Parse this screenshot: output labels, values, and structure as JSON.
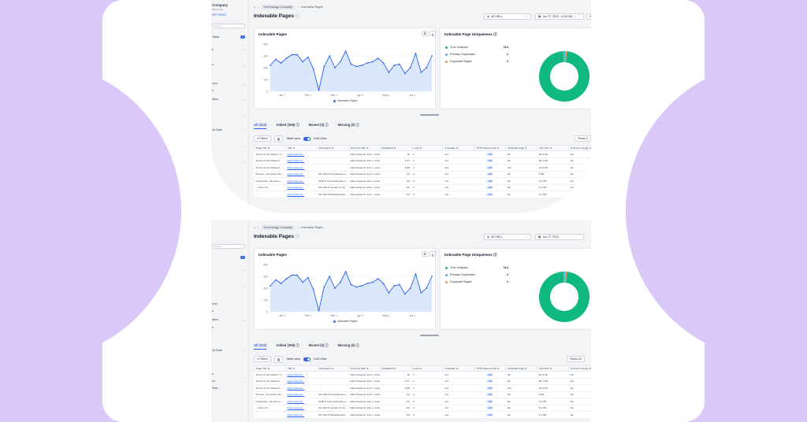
{
  "sidebar": {
    "company": "Company",
    "company_sub": "demo.com",
    "settings": "SETTINGS",
    "search_placeholder": "Search",
    "tasks_label": "Tasks",
    "tasks_count": "2",
    "partial_items": [
      "e",
      "s",
      "s",
      "over",
      "s",
      "ation",
      "e",
      "s",
      "ed Data",
      "s",
      "s",
      "ne",
      "cience",
      "Stop",
      "s"
    ]
  },
  "header": {
    "home_icon": "home-icon",
    "breadcrumb": [
      "Technology Company",
      "Indexable Pages"
    ],
    "title": "Indexable Pages",
    "filter_urls": "All URLs",
    "date_a": "Jun 27, 2022, 12:00 AM",
    "date_b": "Jun 27, 2022"
  },
  "chart_card": {
    "title": "Indexable Pages",
    "legend": "Indexable Pages"
  },
  "chart_data": {
    "type": "area",
    "title": "Indexable Pages",
    "xlabel": "",
    "ylabel": "",
    "ylim": [
      0,
      400
    ],
    "yticks": [
      "400",
      "300",
      "200",
      "100",
      "0"
    ],
    "x_tick_labels": [
      "Jan 1",
      "Feb 1",
      "Mar 1",
      "Apr 1",
      "May 1",
      "Jun 1"
    ],
    "series": [
      {
        "name": "Indexable Pages",
        "color": "#2563eb",
        "values": [
          220,
          270,
          240,
          280,
          310,
          310,
          250,
          290,
          190,
          10,
          210,
          300,
          200,
          250,
          340,
          230,
          210,
          220,
          240,
          250,
          280,
          240,
          160,
          220,
          230,
          150,
          200,
          320,
          160,
          200,
          300
        ]
      }
    ]
  },
  "uniqueness": {
    "title": "Indexable Page Uniqueness",
    "items": [
      {
        "label": "True Uniques",
        "value": "314",
        "color": "#10b981"
      },
      {
        "label": "Primary Duplicates",
        "value": "4",
        "color": "#38bdf8"
      },
      {
        "label": "Duplicate Pages",
        "value": "4",
        "color": "#fb923c"
      }
    ]
  },
  "tabs": [
    {
      "label": "All",
      "count": "(322)"
    },
    {
      "label": "Added",
      "count": "(368)"
    },
    {
      "label": "Moved",
      "count": "(0)"
    },
    {
      "label": "Missing",
      "count": "(0)"
    }
  ],
  "toolbar": {
    "filters": "Filters",
    "table_view": "Table view",
    "grid_view": "Grid View",
    "rows_a": "Rows 2",
    "rows_b": "Rows 20"
  },
  "table": {
    "columns": [
      "Page Title",
      "URL",
      "Description",
      "Found At URL",
      "DeepRank",
      "Level",
      "Indexable",
      "HTTP Status Code",
      "Duplicate Page",
      "Text Size",
      "Found in Google"
    ],
    "rows": [
      [
        "Terms of Use Notice / T...",
        "https://www.dt...",
        "-",
        "https://www.dr..tech.t...ercial",
        "10",
        "1",
        "Yes",
        "200",
        "No",
        "30.2 KB",
        "No"
      ],
      [
        "Terms of Use Notice F...",
        "https://www.dt...",
        "-",
        "https://www.dr..tech.t...ercial",
        "8.77",
        "1",
        "Yes",
        "200",
        "No",
        "18.7 KB",
        "No"
      ],
      [
        "Terms of Use Notice F...",
        "https://www.dt...",
        "-",
        "https://www.dr..tech.t...ercial",
        "8.69",
        "1",
        "Yes",
        "200",
        "Yes",
        "24.6 KB",
        "No"
      ],
      [
        "Phones - All series | DC...",
        "https://www.dt...",
        "DC TECH smartphones e...",
        "https://www.dr..tech.t...ercial",
        "6.6",
        "2",
        "Yes",
        "200",
        "No",
        "5 KB",
        "No"
      ],
      [
        "Keyboards - All series |...",
        "https://www.dt...",
        "RGB & TUF keyboards p...",
        "https://www.dr..tech.t...ercial",
        "6.6",
        "2",
        "Yes",
        "200",
        "No",
        "3.5 KB",
        "No"
      ],
      [
        "...onitor | D...",
        "https://www.dt...",
        "DC TECH monitor is a li...",
        "https://www.dr..tech.t...ercial",
        "6.6",
        "2",
        "Yes",
        "200",
        "No",
        "5.1 KB",
        "No"
      ],
      [
        "...",
        "https://www.dt...",
        "DC TECH Motherboards ...",
        "https://www.dr..tech.t...ercial",
        "6.6",
        "2",
        "Yes",
        "200",
        "No",
        "4.2 KB",
        "No"
      ]
    ]
  }
}
